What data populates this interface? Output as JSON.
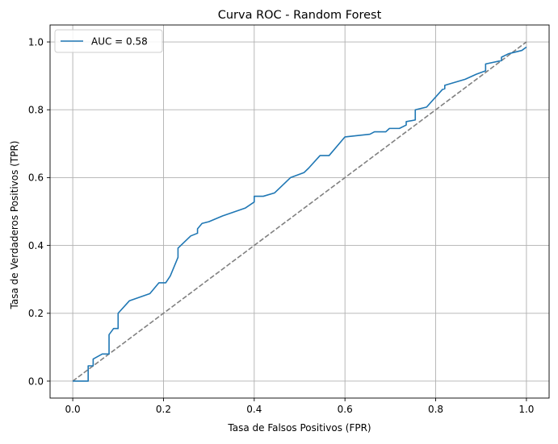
{
  "chart_data": {
    "type": "line",
    "title": "Curva ROC - Random Forest",
    "xlabel": "Tasa de Falsos Positivos (FPR)",
    "ylabel": "Tasa de Verdaderos Positivos (TPR)",
    "xlim": [
      -0.05,
      1.05
    ],
    "ylim": [
      -0.05,
      1.05
    ],
    "xticks": [
      0.0,
      0.2,
      0.4,
      0.6,
      0.8,
      1.0
    ],
    "xtick_labels": [
      "0.0",
      "0.2",
      "0.4",
      "0.6",
      "0.8",
      "1.0"
    ],
    "yticks": [
      0.0,
      0.2,
      0.4,
      0.6,
      0.8,
      1.0
    ],
    "ytick_labels": [
      "0.0",
      "0.2",
      "0.4",
      "0.6",
      "0.8",
      "1.0"
    ],
    "grid": true,
    "legend_position": "top-left",
    "series": [
      {
        "name": "AUC = 0.58",
        "color": "#1f77b4",
        "style": "solid",
        "x": [
          0.0,
          0.034,
          0.034,
          0.045,
          0.045,
          0.065,
          0.08,
          0.08,
          0.09,
          0.1,
          0.1,
          0.125,
          0.17,
          0.19,
          0.205,
          0.215,
          0.232,
          0.232,
          0.26,
          0.275,
          0.275,
          0.285,
          0.3,
          0.33,
          0.38,
          0.4,
          0.4,
          0.42,
          0.445,
          0.48,
          0.51,
          0.52,
          0.545,
          0.565,
          0.6,
          0.655,
          0.665,
          0.69,
          0.698,
          0.72,
          0.735,
          0.735,
          0.755,
          0.755,
          0.78,
          0.815,
          0.82,
          0.82,
          0.865,
          0.89,
          0.91,
          0.91,
          0.945,
          0.945,
          0.96,
          0.975,
          0.99,
          1.0
        ],
        "y": [
          0.0,
          0.0,
          0.045,
          0.045,
          0.065,
          0.08,
          0.08,
          0.137,
          0.155,
          0.155,
          0.2,
          0.237,
          0.258,
          0.29,
          0.29,
          0.31,
          0.365,
          0.392,
          0.428,
          0.436,
          0.449,
          0.465,
          0.47,
          0.487,
          0.51,
          0.528,
          0.545,
          0.545,
          0.555,
          0.6,
          0.615,
          0.628,
          0.665,
          0.665,
          0.72,
          0.728,
          0.735,
          0.735,
          0.745,
          0.745,
          0.755,
          0.765,
          0.77,
          0.8,
          0.808,
          0.86,
          0.862,
          0.872,
          0.89,
          0.905,
          0.915,
          0.935,
          0.945,
          0.955,
          0.965,
          0.97,
          0.975,
          0.985
        ]
      },
      {
        "name": "",
        "color": "#808080",
        "style": "dashed",
        "x": [
          0.0,
          1.0
        ],
        "y": [
          0.0,
          1.0
        ]
      }
    ]
  }
}
